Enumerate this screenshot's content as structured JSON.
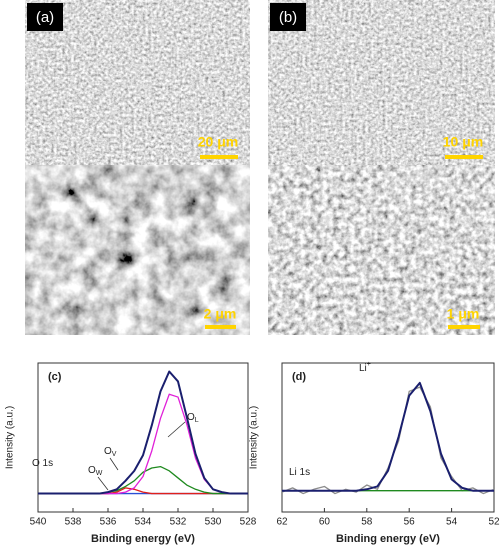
{
  "images": [
    {
      "label": "(a)",
      "scale_bars": [
        "20 μm",
        "2 μm"
      ]
    },
    {
      "label": "(b)",
      "scale_bars": [
        "10 μm",
        "1 μm"
      ]
    }
  ],
  "chart_data": [
    {
      "type": "line",
      "label": "(c)",
      "xlabel": "Binding energy (eV)",
      "ylabel": "Intensity (a.u.)",
      "x": [
        540,
        539.5,
        539,
        538.5,
        538,
        537.5,
        537,
        536.5,
        536,
        535.5,
        535,
        534.5,
        534,
        533.5,
        533,
        532.5,
        532,
        531.5,
        531,
        530.5,
        530,
        529.5,
        529,
        528.5,
        528
      ],
      "xlim": [
        540,
        528
      ],
      "xticks": [
        540,
        538,
        536,
        534,
        532,
        530,
        528
      ],
      "ylim": [
        0,
        1.05
      ],
      "series": [
        {
          "color": "#2a4fd6",
          "values": [
            0.13,
            0.13,
            0.13,
            0.13,
            0.13,
            0.13,
            0.13,
            0.13,
            0.13,
            0.13,
            0.13,
            0.13,
            0.13,
            0.13,
            0.13,
            0.13,
            0.13,
            0.13,
            0.13,
            0.13,
            0.13,
            0.13,
            0.13,
            0.13,
            0.13
          ]
        },
        {
          "color": "#e0201c",
          "values": [
            0.13,
            0.13,
            0.13,
            0.13,
            0.13,
            0.13,
            0.13,
            0.13,
            0.13,
            0.14,
            0.17,
            0.16,
            0.14,
            0.13,
            0.13,
            0.13,
            0.13,
            0.13,
            0.13,
            0.13,
            0.13,
            0.13,
            0.13,
            0.13,
            0.13
          ]
        },
        {
          "color": "#1f8a1f",
          "values": [
            0.13,
            0.13,
            0.13,
            0.13,
            0.13,
            0.13,
            0.13,
            0.13,
            0.14,
            0.15,
            0.18,
            0.22,
            0.28,
            0.31,
            0.32,
            0.29,
            0.24,
            0.19,
            0.16,
            0.14,
            0.13,
            0.13,
            0.13,
            0.13,
            0.13
          ]
        },
        {
          "color": "#e020d8",
          "values": [
            0.13,
            0.13,
            0.13,
            0.13,
            0.13,
            0.13,
            0.13,
            0.13,
            0.13,
            0.13,
            0.14,
            0.17,
            0.25,
            0.43,
            0.66,
            0.83,
            0.81,
            0.62,
            0.38,
            0.23,
            0.16,
            0.14,
            0.13,
            0.13,
            0.13
          ]
        },
        {
          "color": "#1a1f6e",
          "values": [
            0.13,
            0.13,
            0.13,
            0.13,
            0.13,
            0.13,
            0.13,
            0.13,
            0.14,
            0.16,
            0.22,
            0.29,
            0.4,
            0.61,
            0.85,
            0.99,
            0.92,
            0.67,
            0.41,
            0.24,
            0.16,
            0.14,
            0.13,
            0.13,
            0.13
          ]
        }
      ],
      "annotations": [
        {
          "text": "O 1s"
        },
        {
          "text": "O",
          "sub": "L"
        },
        {
          "text": "O",
          "sub": "V"
        },
        {
          "text": "O",
          "sub": "W"
        }
      ]
    },
    {
      "type": "line",
      "label": "(d)",
      "xlabel": "Binding energy (eV)",
      "ylabel": "Intensity (a.u.)",
      "x": [
        62,
        61.5,
        61,
        60.5,
        60,
        59.5,
        59,
        58.5,
        58,
        57.5,
        57,
        56.5,
        56,
        55.5,
        55,
        54.5,
        54,
        53.5,
        53,
        52.5,
        52
      ],
      "xlim": [
        62,
        52
      ],
      "xticks": [
        62,
        60,
        58,
        56,
        54,
        52
      ],
      "ylim": [
        0,
        1.05
      ],
      "series": [
        {
          "color": "#8c8c8c",
          "values": [
            0.14,
            0.17,
            0.13,
            0.16,
            0.18,
            0.13,
            0.16,
            0.14,
            0.19,
            0.16,
            0.31,
            0.5,
            0.85,
            0.88,
            0.74,
            0.38,
            0.25,
            0.15,
            0.17,
            0.13,
            0.16
          ]
        },
        {
          "color": "#1f8a1f",
          "values": [
            0.15,
            0.15,
            0.15,
            0.15,
            0.15,
            0.15,
            0.15,
            0.15,
            0.15,
            0.15,
            0.15,
            0.15,
            0.15,
            0.15,
            0.15,
            0.15,
            0.15,
            0.15,
            0.15,
            0.15,
            0.15
          ]
        },
        {
          "color": "#1a1f6e",
          "values": [
            0.15,
            0.15,
            0.15,
            0.15,
            0.15,
            0.15,
            0.15,
            0.15,
            0.16,
            0.18,
            0.29,
            0.53,
            0.82,
            0.91,
            0.71,
            0.41,
            0.23,
            0.17,
            0.15,
            0.15,
            0.15
          ]
        }
      ],
      "annotations": [
        {
          "text": "Li",
          "sup": "+"
        },
        {
          "text": "Li 1s"
        }
      ]
    }
  ]
}
